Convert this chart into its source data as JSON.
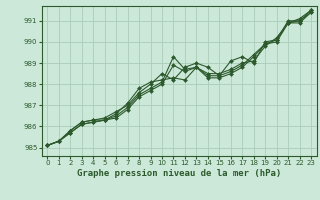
{
  "title": "Graphe pression niveau de la mer (hPa)",
  "bg_color": "#cce8d8",
  "grid_color": "#aaccb8",
  "line_color": "#2d5a2d",
  "marker_color": "#2d5a2d",
  "xlim": [
    -0.5,
    23.5
  ],
  "ylim": [
    984.6,
    991.7
  ],
  "yticks": [
    985,
    986,
    987,
    988,
    989,
    990,
    991
  ],
  "xticks": [
    0,
    1,
    2,
    3,
    4,
    5,
    6,
    7,
    8,
    9,
    10,
    11,
    12,
    13,
    14,
    15,
    16,
    17,
    18,
    19,
    20,
    21,
    22,
    23
  ],
  "series": [
    [
      985.1,
      985.3,
      985.7,
      986.1,
      986.2,
      986.3,
      986.5,
      986.9,
      987.5,
      987.8,
      988.1,
      989.3,
      988.7,
      988.8,
      988.4,
      988.4,
      988.6,
      988.9,
      989.4,
      989.9,
      990.0,
      990.9,
      991.0,
      991.4
    ],
    [
      985.1,
      985.3,
      985.8,
      986.2,
      986.3,
      986.3,
      986.6,
      987.1,
      987.8,
      988.1,
      988.2,
      988.3,
      988.2,
      988.8,
      988.5,
      988.5,
      988.7,
      989.0,
      989.1,
      989.8,
      990.2,
      990.9,
      990.9,
      991.4
    ],
    [
      985.1,
      985.3,
      985.8,
      986.2,
      986.3,
      986.4,
      986.7,
      987.0,
      987.6,
      988.0,
      988.5,
      988.2,
      988.8,
      989.0,
      988.8,
      988.4,
      989.1,
      989.3,
      989.0,
      990.0,
      990.1,
      990.9,
      991.1,
      991.5
    ],
    [
      985.1,
      985.3,
      985.7,
      986.1,
      986.2,
      986.3,
      986.4,
      986.8,
      987.4,
      987.7,
      988.0,
      988.9,
      988.6,
      988.8,
      988.3,
      988.3,
      988.5,
      988.8,
      989.3,
      989.9,
      990.1,
      991.0,
      991.0,
      991.5
    ]
  ],
  "ylabel_fontsize": 5.5,
  "xlabel_fontsize": 6.5,
  "tick_fontsize": 5.0
}
